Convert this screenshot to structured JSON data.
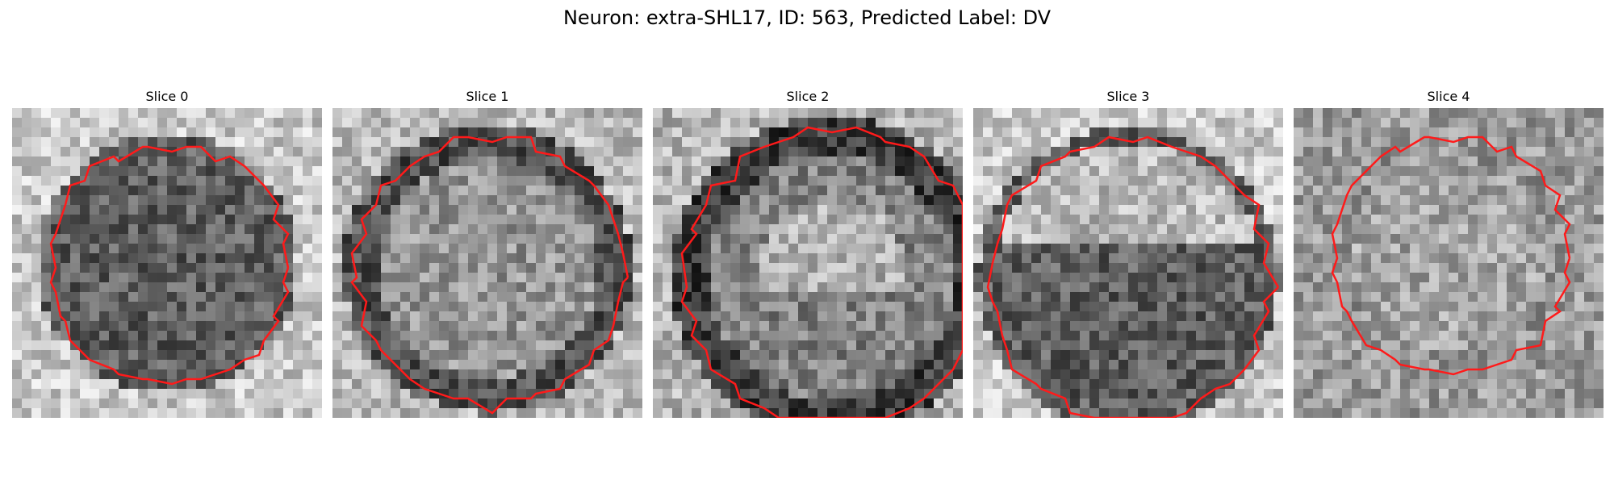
{
  "figure": {
    "title": "Neuron: extra-SHL17, ID: 563, Predicted Label: DV"
  },
  "panels": [
    {
      "title": "Slice 0"
    },
    {
      "title": "Slice 1"
    },
    {
      "title": "Slice 2"
    },
    {
      "title": "Slice 3"
    },
    {
      "title": "Slice 4"
    }
  ],
  "colors": {
    "contour": "#ff1a1a",
    "background": "#ffffff"
  }
}
